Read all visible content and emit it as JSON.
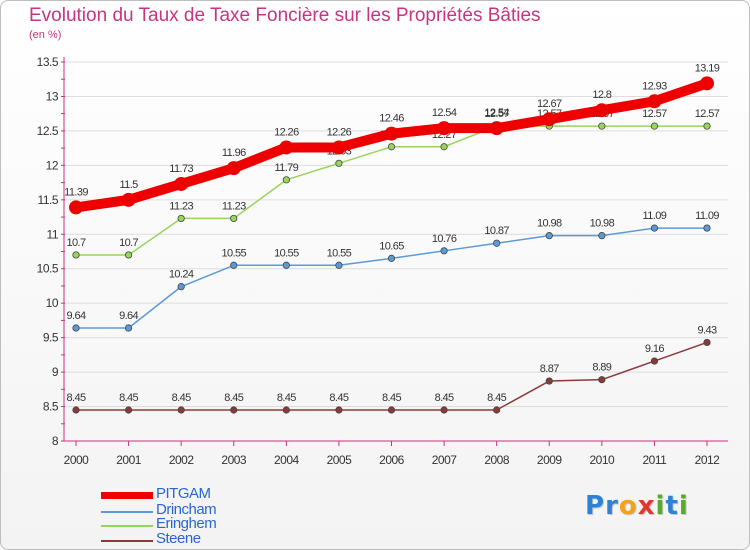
{
  "title": "Evolution du Taux de Taxe Foncière sur les Propriétés Bâties",
  "unit_label": "(en %)",
  "logo": {
    "text": "Proxiti",
    "letters": [
      {
        "ch": "P",
        "color": "#2e82d6"
      },
      {
        "ch": "r",
        "color": "#2e82d6"
      },
      {
        "ch": "o",
        "color": "#f2a21b"
      },
      {
        "ch": "x",
        "color": "#e5372e"
      },
      {
        "ch": "i",
        "color": "#5aaa2a"
      },
      {
        "ch": "t",
        "color": "#2e82d6"
      },
      {
        "ch": "i",
        "color": "#5aaa2a"
      }
    ]
  },
  "colors": {
    "axis": "#c8347f",
    "grid": "#dddddd",
    "label": "#333333"
  },
  "chart_data": {
    "type": "line",
    "title": "Evolution du Taux de Taxe Foncière sur les Propriétés Bâties",
    "ylabel": "(en %)",
    "xlabel": "",
    "ylim": [
      8,
      13.5
    ],
    "y_ticks": [
      "8",
      "8.5",
      "9",
      "9.5",
      "10",
      "10.5",
      "11",
      "11.5",
      "12",
      "12.5",
      "13",
      "13.5"
    ],
    "y_tick_values": [
      8,
      8.5,
      9,
      9.5,
      10,
      10.5,
      11,
      11.5,
      12,
      12.5,
      13,
      13.5
    ],
    "grid": true,
    "legend_position": "bottom-left",
    "x": [
      "2000",
      "2001",
      "2002",
      "2003",
      "2004",
      "2005",
      "2006",
      "2007",
      "2008",
      "2009",
      "2010",
      "2011",
      "2012"
    ],
    "series": [
      {
        "name": "PITGAM",
        "color": "#ee0000",
        "highlight": true,
        "values": [
          11.39,
          11.5,
          11.73,
          11.96,
          12.26,
          12.26,
          12.46,
          12.54,
          12.54,
          12.67,
          12.8,
          12.93,
          13.19
        ],
        "labels": [
          "11.39",
          "11.5",
          "11.73",
          "11.96",
          "12.26",
          "12.26",
          "12.46",
          "12.54",
          "12.54",
          "12.67",
          "12.8",
          "12.93",
          "13.19"
        ]
      },
      {
        "name": "Drincham",
        "color": "#5b9ad6",
        "highlight": false,
        "values": [
          9.64,
          9.64,
          10.24,
          10.55,
          10.55,
          10.55,
          10.65,
          10.76,
          10.87,
          10.98,
          10.98,
          11.09,
          11.09
        ],
        "labels": [
          "9.64",
          "9.64",
          "10.24",
          "10.55",
          "10.55",
          "10.55",
          "10.65",
          "10.76",
          "10.87",
          "10.98",
          "10.98",
          "11.09",
          "11.09"
        ]
      },
      {
        "name": "Eringhem",
        "color": "#96d65a",
        "highlight": false,
        "values": [
          10.7,
          10.7,
          11.23,
          11.23,
          11.79,
          12.03,
          12.27,
          12.27,
          12.57,
          12.57,
          12.57,
          12.57,
          12.57
        ],
        "labels": [
          "10.7",
          "10.7",
          "11.23",
          "11.23",
          "11.79",
          "12.03",
          "12.27",
          "12.27",
          "12.57",
          "12.57",
          "12.57",
          "12.57",
          "12.57"
        ]
      },
      {
        "name": "Steene",
        "color": "#8b3a3a",
        "highlight": false,
        "values": [
          8.45,
          8.45,
          8.45,
          8.45,
          8.45,
          8.45,
          8.45,
          8.45,
          8.45,
          8.87,
          8.89,
          9.16,
          9.43
        ],
        "labels": [
          "8.45",
          "8.45",
          "8.45",
          "8.45",
          "8.45",
          "8.45",
          "8.45",
          "8.45",
          "8.45",
          "8.87",
          "8.89",
          "9.16",
          "9.43"
        ]
      }
    ]
  }
}
